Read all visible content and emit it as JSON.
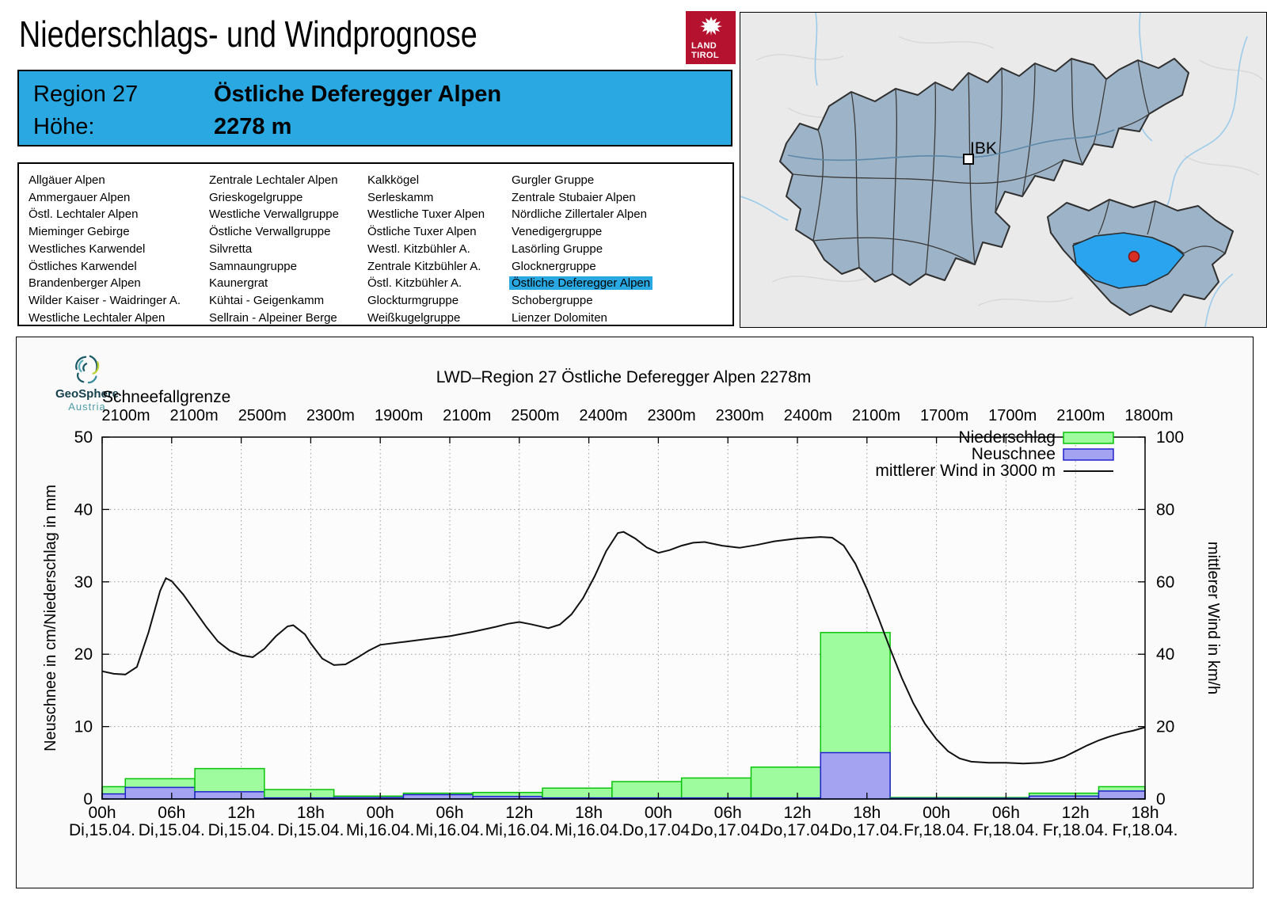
{
  "header": {
    "title": "Niederschlags- und Windprognose",
    "logo": {
      "line1": "LAND",
      "line2": "TIROL"
    }
  },
  "region_info": {
    "region_label": "Region 27",
    "region_name": "Östliche Deferegger Alpen",
    "elevation_label": "Höhe:",
    "elevation_value": "2278 m"
  },
  "region_list": {
    "selected": "Östliche Deferegger Alpen",
    "columns": [
      [
        "Allgäuer Alpen",
        "Ammergauer Alpen",
        "Östl. Lechtaler Alpen",
        "Mieminger Gebirge",
        "Westliches Karwendel",
        "Östliches Karwendel",
        "Brandenberger Alpen",
        "Wilder Kaiser - Waidringer A.",
        "Westliche Lechtaler Alpen"
      ],
      [
        "Zentrale Lechtaler Alpen",
        "Grieskogelgruppe",
        "Westliche Verwallgruppe",
        "Östliche Verwallgruppe",
        "Silvretta",
        "Samnaungruppe",
        "Kaunergrat",
        "Kühtai - Geigenkamm",
        "Sellrain - Alpeiner Berge"
      ],
      [
        "Kalkkögel",
        "Serleskamm",
        "Westliche Tuxer Alpen",
        "Östliche Tuxer Alpen",
        "Westl. Kitzbühler A.",
        "Zentrale Kitzbühler A.",
        "Östl. Kitzbühler A.",
        "Glockturmgruppe",
        "Weißkugelgruppe"
      ],
      [
        "Gurgler Gruppe",
        "Zentrale Stubaier Alpen",
        "Nördliche Zillertaler Alpen",
        "Venedigergruppe",
        "Lasörling Gruppe",
        "Glocknergruppe",
        "Östliche Deferegger Alpen",
        "Schobergruppe",
        "Lienzer Dolomiten"
      ]
    ]
  },
  "map": {
    "city_label": "IBK",
    "region_fill": "#9db3c7",
    "highlight_color": "#2aa4ef",
    "dot_color": "#d93025"
  },
  "footer_logo": {
    "name": "GeoSphere",
    "sub": "Austria"
  },
  "chart_data": {
    "type": "bar",
    "title": "LWD–Region 27 Östliche Deferegger Alpen 2278m",
    "snowline_label": "Schneefallgrenze",
    "snowline_values": [
      "2100m",
      "2100m",
      "2500m",
      "2300m",
      "1900m",
      "2100m",
      "2500m",
      "2400m",
      "2300m",
      "2300m",
      "2400m",
      "2100m",
      "1700m",
      "1700m",
      "2100m",
      "1800m"
    ],
    "ylabel_left": "Neuschnee in cm/Niederschlag in mm",
    "ylabel_right": "mittlerer Wind in km/h",
    "ylim_left": [
      0,
      50
    ],
    "ylim_right": [
      0,
      100
    ],
    "yticks_left": [
      0,
      10,
      20,
      30,
      40,
      50
    ],
    "yticks_right": [
      0,
      20,
      40,
      60,
      80,
      100
    ],
    "grid": true,
    "legend_position": "top-right",
    "legend": [
      {
        "label": "Niederschlag",
        "type": "box",
        "fill": "#9efc9e",
        "stroke": "#09c309"
      },
      {
        "label": "Neuschnee",
        "type": "box",
        "fill": "#a3a3f2",
        "stroke": "#2121cc"
      },
      {
        "label": "mittlerer Wind in 3000 m",
        "type": "line",
        "stroke": "#111111"
      }
    ],
    "x_ticks": [
      {
        "hour": "00h",
        "day": "Di,15.04."
      },
      {
        "hour": "06h",
        "day": "Di,15.04."
      },
      {
        "hour": "12h",
        "day": "Di,15.04."
      },
      {
        "hour": "18h",
        "day": "Di,15.04."
      },
      {
        "hour": "00h",
        "day": "Mi,16.04."
      },
      {
        "hour": "06h",
        "day": "Mi,16.04."
      },
      {
        "hour": "12h",
        "day": "Mi,16.04."
      },
      {
        "hour": "18h",
        "day": "Mi,16.04."
      },
      {
        "hour": "00h",
        "day": "Do,17.04."
      },
      {
        "hour": "06h",
        "day": "Do,17.04."
      },
      {
        "hour": "12h",
        "day": "Do,17.04."
      },
      {
        "hour": "18h",
        "day": "Do,17.04."
      },
      {
        "hour": "00h",
        "day": "Fr,18.04."
      },
      {
        "hour": "06h",
        "day": "Fr,18.04."
      },
      {
        "hour": "12h",
        "day": "Fr,18.04."
      },
      {
        "hour": "18h",
        "day": "Fr,18.04."
      }
    ],
    "series": {
      "niederschlag_mm": [
        1.7,
        2.8,
        4.2,
        1.3,
        0.4,
        0.8,
        0.9,
        1.5,
        2.4,
        2.9,
        4.4,
        23.0,
        0.2,
        0.2,
        0.8,
        1.7
      ],
      "neuschnee_cm": [
        0.7,
        1.6,
        1.0,
        0.15,
        0.2,
        0.6,
        0.35,
        0.15,
        0.15,
        0.15,
        0.15,
        6.4,
        0.1,
        0.1,
        0.4,
        1.1
      ],
      "wind_kmh": [
        [
          0,
          35.3
        ],
        [
          1,
          34.6
        ],
        [
          2,
          34.4
        ],
        [
          3,
          36.5
        ],
        [
          4,
          46
        ],
        [
          5,
          57.5
        ],
        [
          5.5,
          61
        ],
        [
          6,
          60.2
        ],
        [
          7,
          56.5
        ],
        [
          8,
          52
        ],
        [
          9,
          47.5
        ],
        [
          10,
          43.5
        ],
        [
          11,
          41
        ],
        [
          12,
          39.7
        ],
        [
          13,
          39.2
        ],
        [
          14,
          41.5
        ],
        [
          15,
          45
        ],
        [
          16,
          47.7
        ],
        [
          16.5,
          48
        ],
        [
          17.5,
          45.5
        ],
        [
          18,
          43
        ],
        [
          19,
          38.8
        ],
        [
          20,
          37
        ],
        [
          21,
          37.2
        ],
        [
          22,
          39
        ],
        [
          23,
          41
        ],
        [
          24,
          42.6
        ],
        [
          26,
          43.4
        ],
        [
          28,
          44.2
        ],
        [
          30,
          45
        ],
        [
          32,
          46.2
        ],
        [
          34,
          47.6
        ],
        [
          35,
          48.4
        ],
        [
          36,
          48.9
        ],
        [
          37,
          48.3
        ],
        [
          38.5,
          47.2
        ],
        [
          39.5,
          48.2
        ],
        [
          40.5,
          51
        ],
        [
          41.5,
          55.5
        ],
        [
          42.5,
          61.5
        ],
        [
          43.5,
          68.5
        ],
        [
          44.5,
          73.5
        ],
        [
          45,
          73.8
        ],
        [
          46,
          72
        ],
        [
          47,
          69.5
        ],
        [
          48,
          68
        ],
        [
          49,
          68.8
        ],
        [
          50,
          70
        ],
        [
          51,
          70.8
        ],
        [
          52,
          71
        ],
        [
          53.5,
          70
        ],
        [
          55,
          69.4
        ],
        [
          56.5,
          70.2
        ],
        [
          58,
          71.2
        ],
        [
          60,
          72
        ],
        [
          62,
          72.4
        ],
        [
          63,
          72.2
        ],
        [
          64,
          70
        ],
        [
          65,
          65
        ],
        [
          66,
          58
        ],
        [
          67,
          50
        ],
        [
          68,
          41.5
        ],
        [
          69,
          33.5
        ],
        [
          70,
          26.5
        ],
        [
          71,
          20.8
        ],
        [
          72,
          16.5
        ],
        [
          73,
          13.2
        ],
        [
          74,
          11.2
        ],
        [
          75,
          10.3
        ],
        [
          76.5,
          10
        ],
        [
          78,
          10
        ],
        [
          79.5,
          9.8
        ],
        [
          81,
          10
        ],
        [
          82,
          10.6
        ],
        [
          83,
          11.6
        ],
        [
          84,
          13.2
        ],
        [
          85,
          14.8
        ],
        [
          86,
          16.2
        ],
        [
          87,
          17.3
        ],
        [
          88,
          18.2
        ],
        [
          89,
          18.9
        ],
        [
          90,
          19.8
        ]
      ]
    }
  }
}
